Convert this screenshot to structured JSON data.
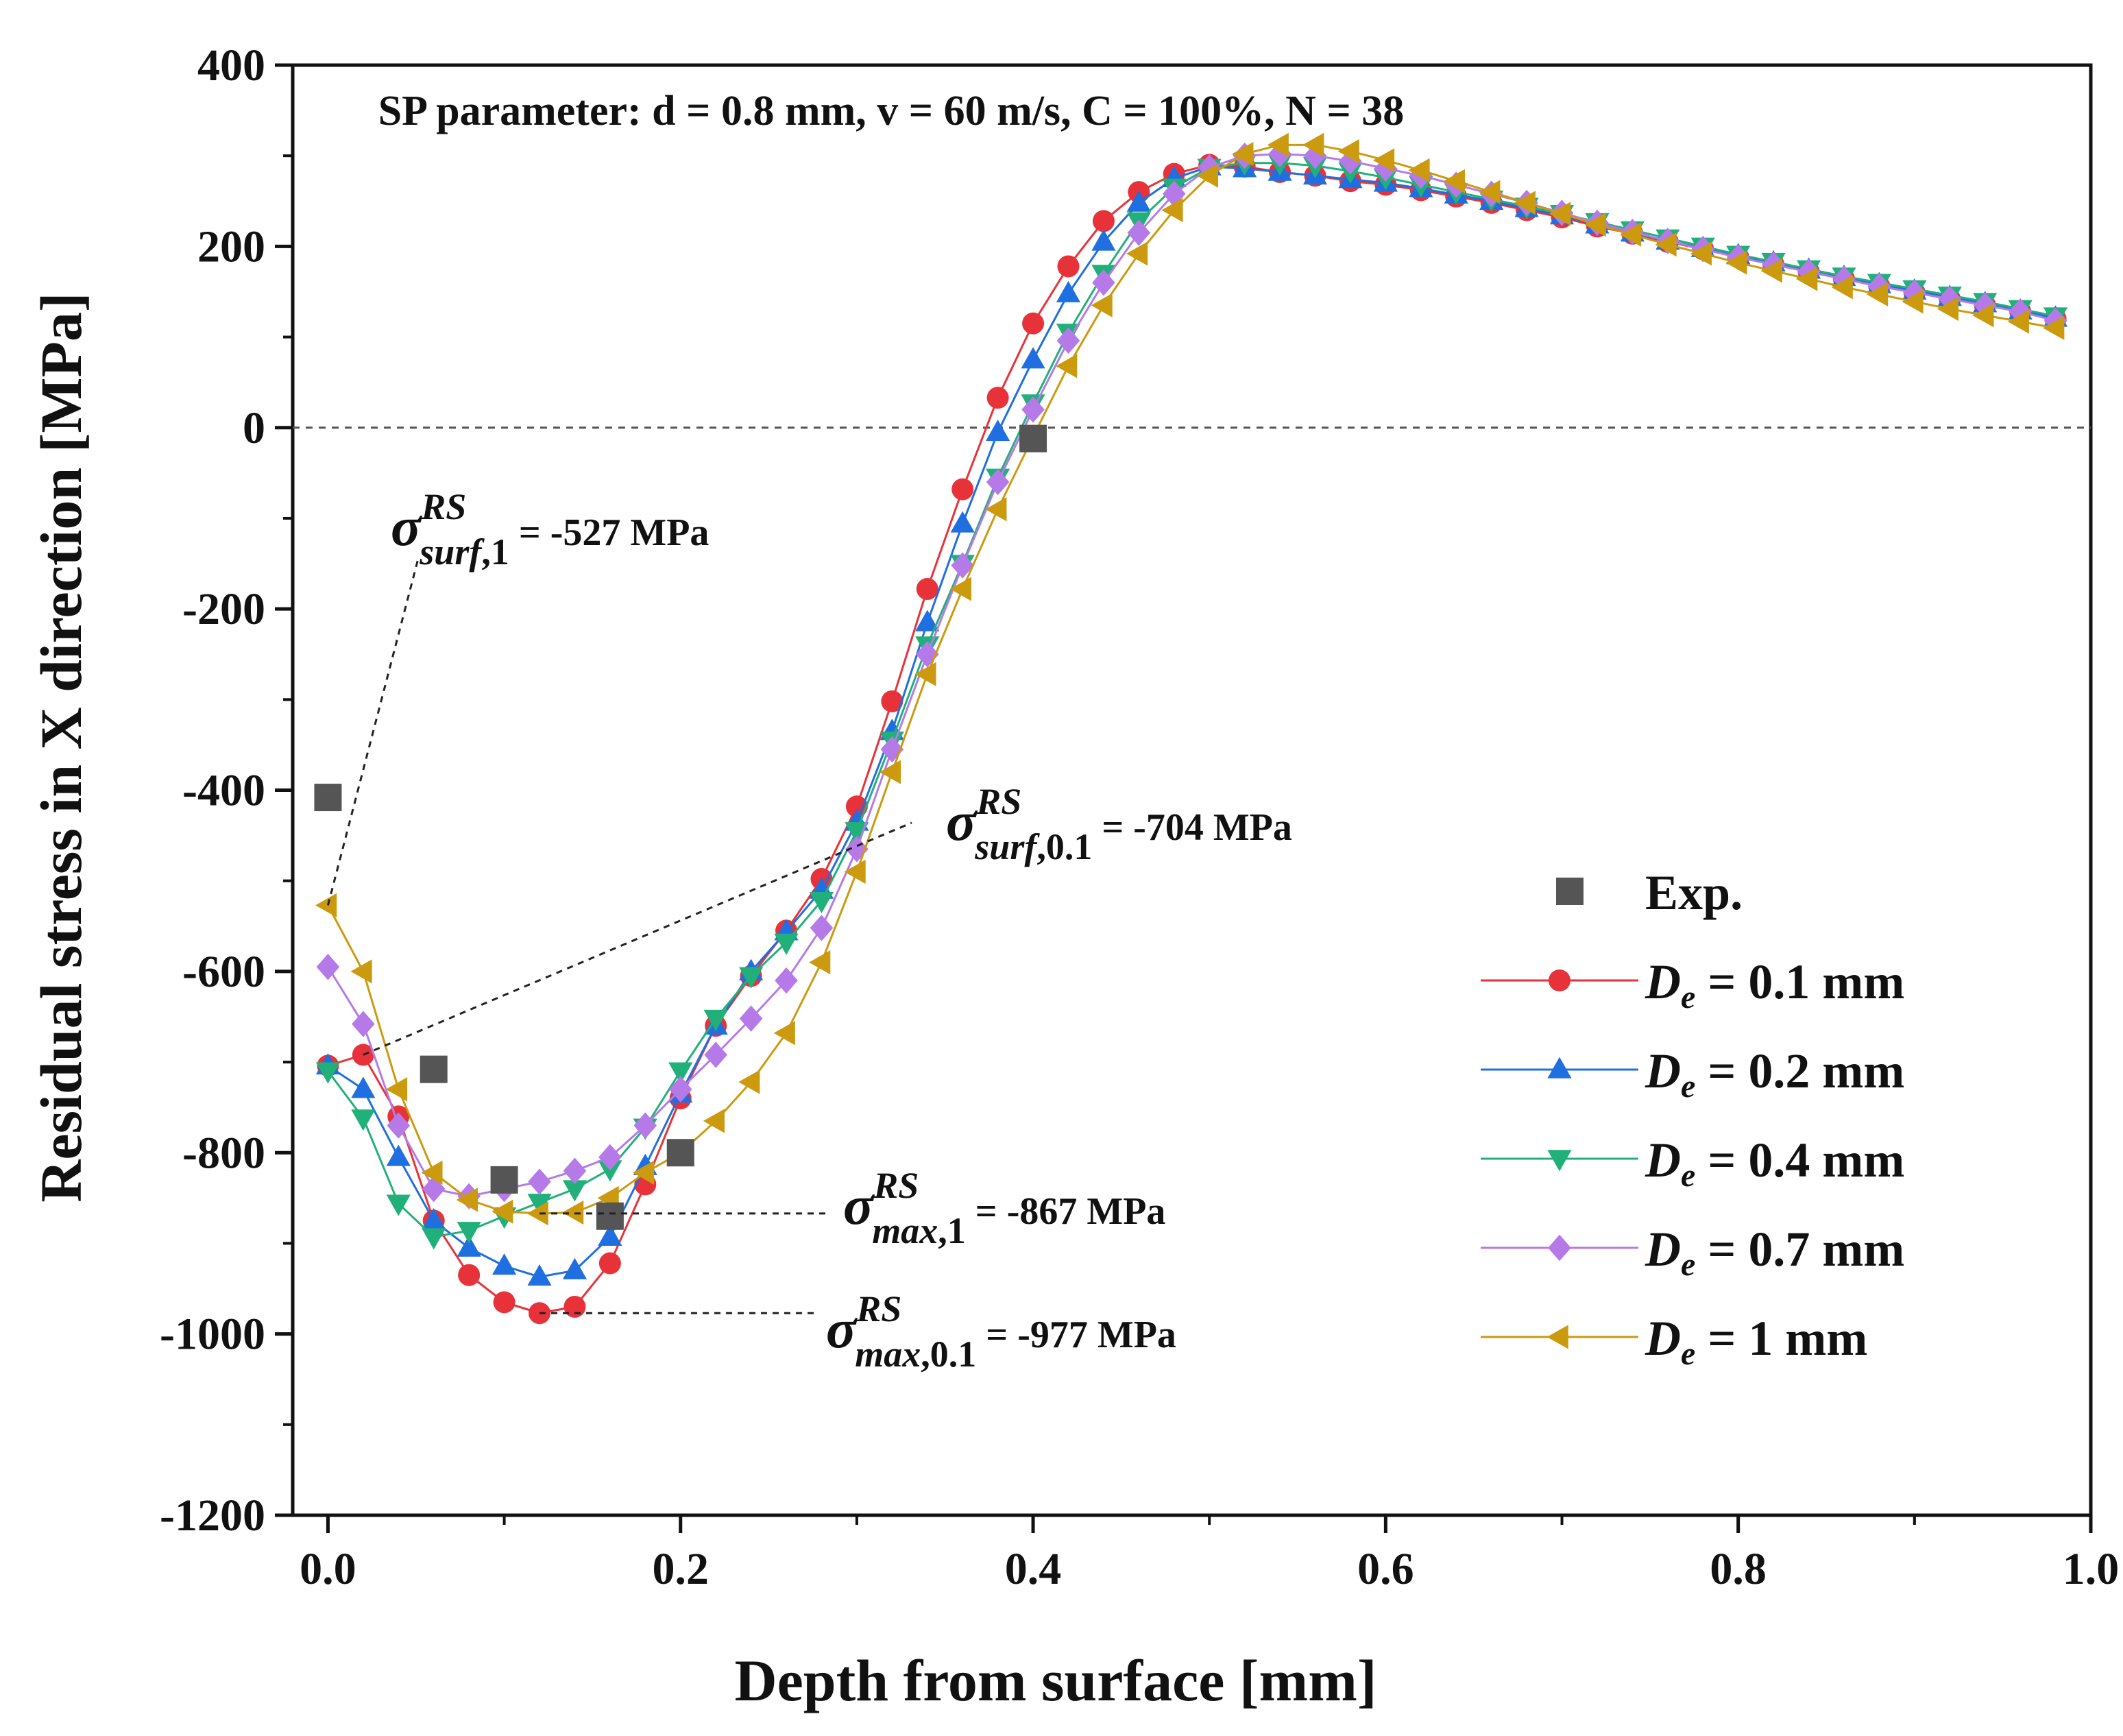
{
  "chart_data": {
    "type": "line",
    "title": "SP parameter: d = 0.8 mm, v = 60 m/s, C = 100%, N = 38",
    "xlabel": "Depth from surface [mm]",
    "ylabel": "Residual stress in X direction [MPa]",
    "xlim": [
      -0.02,
      1.0
    ],
    "ylim": [
      -1200,
      400
    ],
    "xticks": [
      "0.0",
      "0.2",
      "0.4",
      "0.6",
      "0.8",
      "1.0"
    ],
    "yticks": [
      "400",
      "200",
      "0",
      "-200",
      "-400",
      "-600",
      "-800",
      "-1000",
      "-1200"
    ],
    "zero_line": "dashed",
    "legend_position": "right",
    "x": [
      0.0,
      0.02,
      0.04,
      0.06,
      0.08,
      0.1,
      0.12,
      0.14,
      0.16,
      0.18,
      0.2,
      0.22,
      0.24,
      0.26,
      0.28,
      0.3,
      0.32,
      0.34,
      0.36,
      0.38,
      0.4,
      0.42,
      0.44,
      0.46,
      0.48,
      0.5,
      0.52,
      0.54,
      0.56,
      0.58,
      0.6,
      0.62,
      0.64,
      0.66,
      0.68,
      0.7,
      0.72,
      0.74,
      0.76,
      0.78,
      0.8,
      0.82,
      0.84,
      0.86,
      0.88,
      0.9,
      0.92,
      0.94,
      0.96,
      0.98
    ],
    "series": [
      {
        "name": "D_e = 0.1 mm",
        "var": "D",
        "sub": "e",
        "rest": " = 0.1 mm",
        "color": "#e8323a",
        "marker": "circle",
        "values": [
          -704,
          -692,
          -760,
          -875,
          -935,
          -965,
          -977,
          -970,
          -922,
          -835,
          -740,
          -660,
          -605,
          -555,
          -498,
          -418,
          -302,
          -178,
          -68,
          33,
          115,
          178,
          228,
          260,
          280,
          290,
          288,
          282,
          278,
          272,
          268,
          262,
          255,
          248,
          240,
          232,
          222,
          214,
          205,
          197,
          188,
          180,
          172,
          164,
          156,
          149,
          142,
          135,
          128,
          120
        ]
      },
      {
        "name": "D_e = 0.2 mm",
        "var": "D",
        "sub": "e",
        "rest": " = 0.2 mm",
        "color": "#1f6fe0",
        "marker": "triangle-up",
        "values": [
          -704,
          -730,
          -805,
          -875,
          -905,
          -925,
          -937,
          -930,
          -893,
          -815,
          -735,
          -660,
          -600,
          -556,
          -510,
          -435,
          -335,
          -215,
          -106,
          -5,
          75,
          148,
          205,
          248,
          275,
          288,
          286,
          282,
          278,
          274,
          270,
          264,
          257,
          250,
          242,
          234,
          224,
          215,
          206,
          198,
          190,
          182,
          174,
          166,
          158,
          151,
          144,
          137,
          129,
          121
        ]
      },
      {
        "name": "D_e = 0.4 mm",
        "var": "D",
        "sub": "e",
        "rest": " = 0.4 mm",
        "color": "#22b07a",
        "marker": "triangle-down",
        "values": [
          -710,
          -762,
          -856,
          -893,
          -886,
          -870,
          -855,
          -840,
          -818,
          -772,
          -710,
          -652,
          -605,
          -568,
          -522,
          -445,
          -345,
          -240,
          -150,
          -55,
          27,
          105,
          170,
          228,
          265,
          287,
          292,
          292,
          289,
          283,
          276,
          268,
          260,
          252,
          244,
          236,
          227,
          218,
          209,
          200,
          191,
          183,
          175,
          167,
          160,
          153,
          146,
          139,
          131,
          123
        ]
      },
      {
        "name": "D_e = 0.7 mm",
        "var": "D",
        "sub": "e",
        "rest": " = 0.7 mm",
        "color": "#b57ae8",
        "marker": "diamond",
        "values": [
          -595,
          -658,
          -770,
          -840,
          -848,
          -840,
          -832,
          -820,
          -805,
          -770,
          -730,
          -692,
          -652,
          -610,
          -552,
          -465,
          -355,
          -250,
          -152,
          -60,
          20,
          96,
          160,
          215,
          258,
          287,
          300,
          302,
          300,
          294,
          286,
          278,
          268,
          258,
          248,
          237,
          226,
          216,
          206,
          197,
          188,
          180,
          172,
          164,
          156,
          149,
          142,
          135,
          128,
          118
        ]
      },
      {
        "name": "D_e = 1 mm",
        "var": "D",
        "sub": "e",
        "rest": " = 1 mm",
        "color": "#cc9a0e",
        "marker": "triangle-left",
        "values": [
          -527,
          -600,
          -730,
          -822,
          -852,
          -865,
          -867,
          -866,
          -850,
          -822,
          -800,
          -765,
          -722,
          -668,
          -590,
          -490,
          -380,
          -272,
          -178,
          -90,
          -10,
          68,
          135,
          192,
          240,
          278,
          302,
          312,
          312,
          305,
          295,
          284,
          272,
          260,
          248,
          236,
          224,
          213,
          202,
          192,
          182,
          173,
          164,
          155,
          147,
          139,
          131,
          124,
          117,
          110
        ]
      }
    ],
    "experimental": {
      "name": "Exp.",
      "color": "#555555",
      "marker": "square",
      "x": [
        0.0,
        0.06,
        0.1,
        0.16,
        0.2,
        0.4
      ],
      "values": [
        -408,
        -708,
        -830,
        -870,
        -800,
        -12
      ]
    },
    "annotations": [
      {
        "id": "surf1",
        "sym": "σ",
        "sup": "RS",
        "sub": "surf",
        "subnum": ",1",
        "text": " = -527 MPa",
        "point": [
          0.0,
          -527
        ],
        "style": "leader"
      },
      {
        "id": "surf01",
        "sym": "σ",
        "sup": "RS",
        "sub": "surf",
        "subnum": ",0.1",
        "text": " = -704 MPa",
        "point": [
          0.02,
          -692
        ],
        "style": "leader"
      },
      {
        "id": "max1",
        "sym": "σ",
        "sup": "RS",
        "sub": "max",
        "subnum": ",1",
        "text": " = -867 MPa",
        "point": [
          0.12,
          -867
        ],
        "style": "horizontal"
      },
      {
        "id": "max01",
        "sym": "σ",
        "sup": "RS",
        "sub": "max",
        "subnum": ",0.1",
        "text": " = -977 MPa",
        "point": [
          0.12,
          -977
        ],
        "style": "horizontal"
      }
    ]
  }
}
